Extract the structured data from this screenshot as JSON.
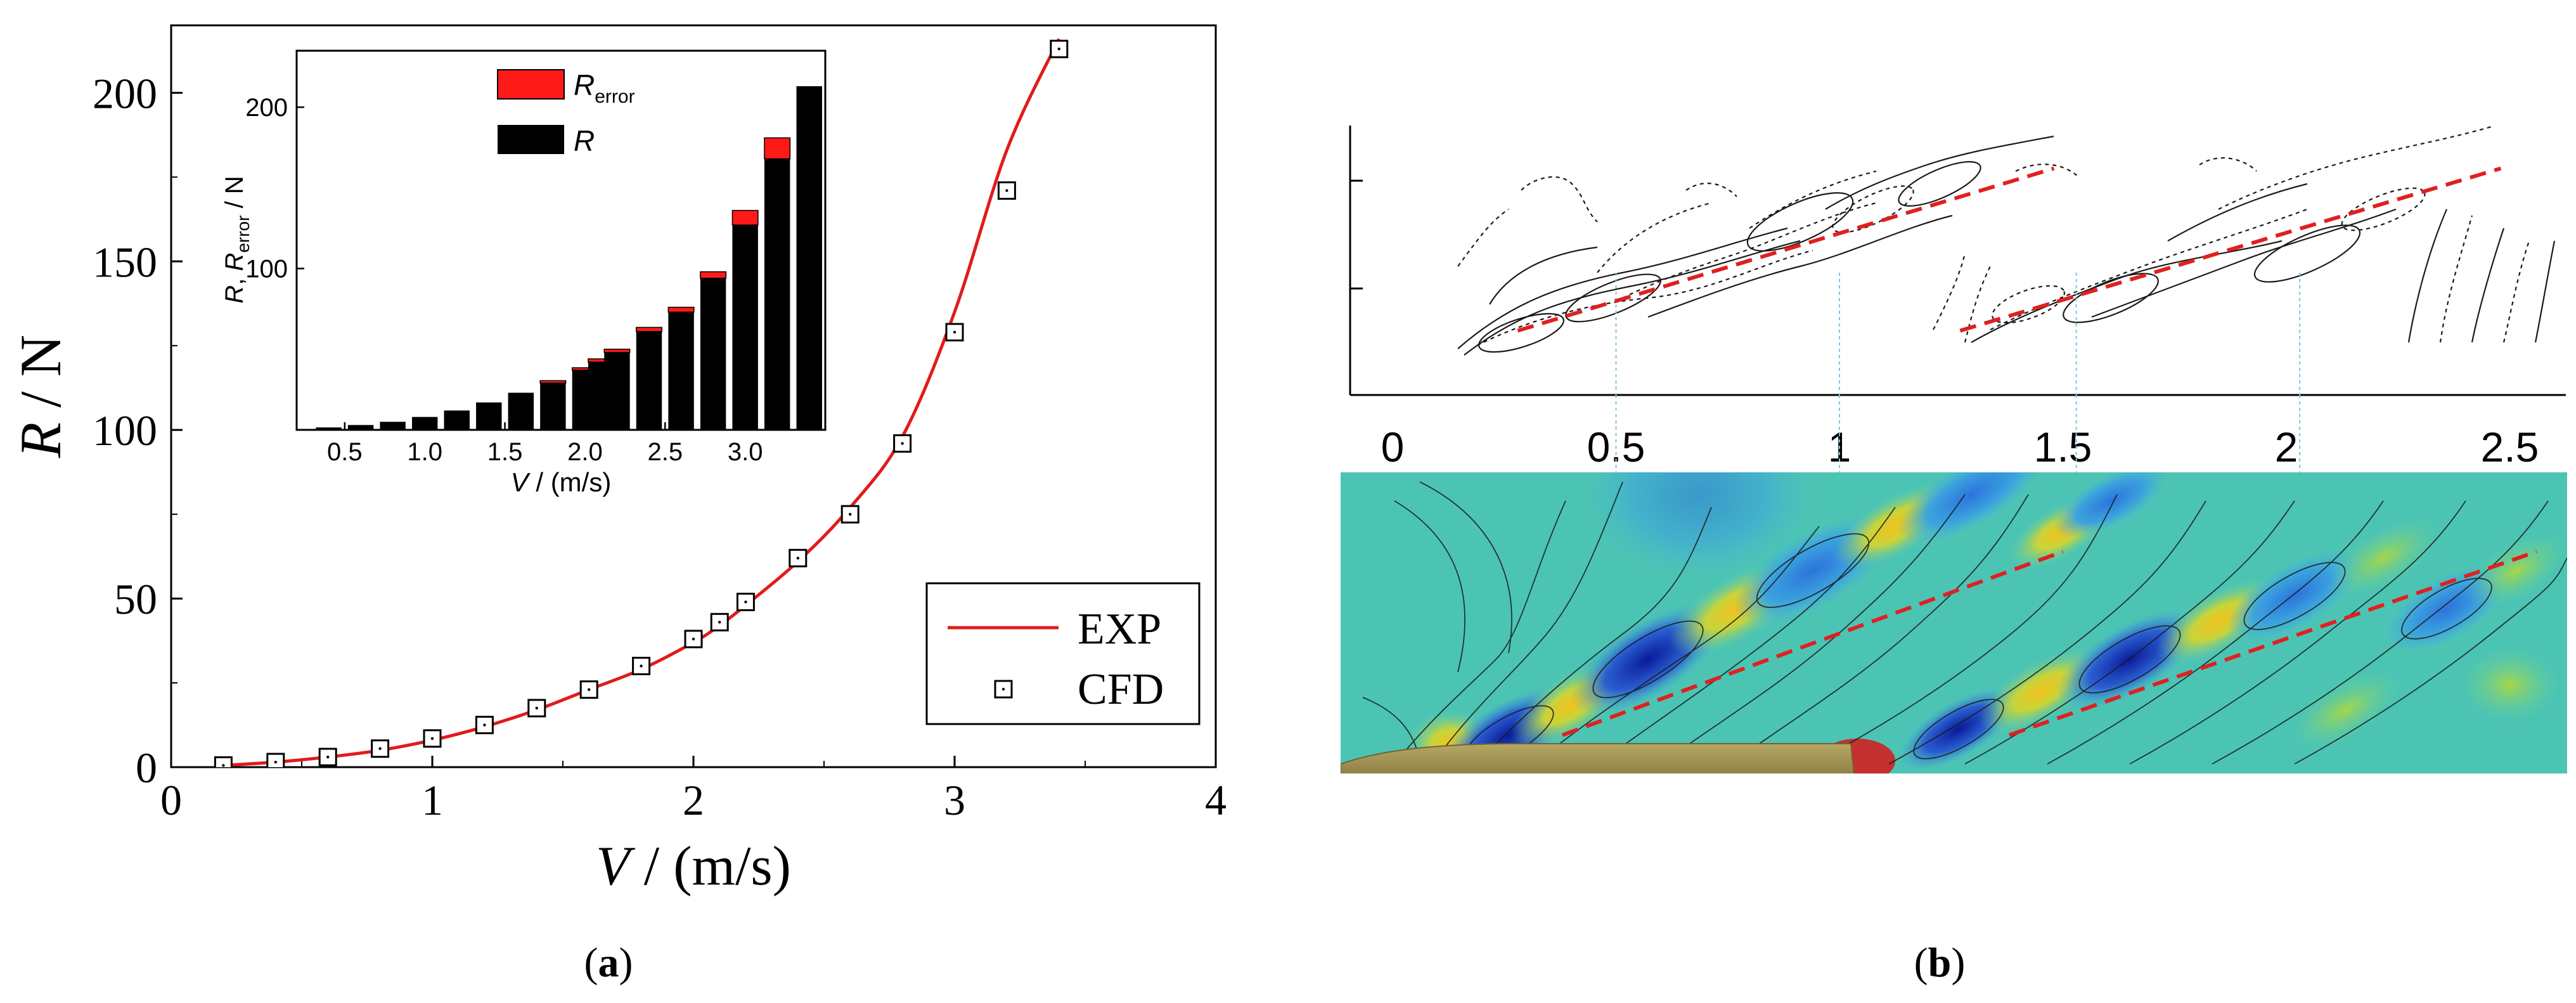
{
  "colors": {
    "exp_line": "#e11b1b",
    "axis": "#000000",
    "bar_r": "#000000",
    "bar_error": "#ff1a1a",
    "dashed_trail": "#e02020",
    "guide": "#7fc6df",
    "contour": "#1a1a1a",
    "hull": "#9c8d52"
  },
  "chart_data": [
    {
      "id": "a_main",
      "type": "line",
      "panel_label": "a",
      "xlabel": "V / (m/s)",
      "ylabel": "R / N",
      "xlim": [
        0,
        4
      ],
      "ylim": [
        0,
        220
      ],
      "xticks": [
        0,
        1,
        2,
        3,
        4
      ],
      "yticks": [
        0,
        50,
        100,
        150,
        200
      ],
      "legend": {
        "placement": "bottom-right",
        "entries": [
          "EXP",
          "CFD"
        ]
      },
      "series": [
        {
          "name": "EXP",
          "style": "line",
          "x": [
            0.2,
            0.4,
            0.6,
            0.8,
            1.0,
            1.2,
            1.4,
            1.6,
            1.8,
            2.0,
            2.1,
            2.2,
            2.4,
            2.6,
            2.8,
            3.0,
            3.2,
            3.4
          ],
          "y": [
            0.5,
            1.5,
            3,
            5,
            8,
            12,
            17,
            23,
            29,
            37,
            42,
            48,
            61,
            77,
            98,
            135,
            183,
            216
          ]
        },
        {
          "name": "CFD",
          "style": "open-square",
          "x": [
            0.2,
            0.4,
            0.6,
            0.8,
            1.0,
            1.2,
            1.4,
            1.6,
            1.8,
            2.0,
            2.1,
            2.2,
            2.4,
            2.6,
            2.8,
            3.0,
            3.2,
            3.4
          ],
          "y": [
            0.5,
            1.5,
            3,
            5.5,
            8.5,
            12.5,
            17.5,
            23,
            30,
            38,
            43,
            49,
            62,
            75,
            96,
            129,
            171,
            213
          ]
        }
      ]
    },
    {
      "id": "a_inset",
      "type": "bar",
      "stacked": true,
      "xlabel": "V / (m/s)",
      "ylabel": "R, R_error / N",
      "ylabel_parts": [
        "R, ",
        "R",
        "error",
        " / N"
      ],
      "xlim": [
        0.2,
        3.5
      ],
      "ylim": [
        0,
        235
      ],
      "xticks": [
        "0.5",
        "1.0",
        "1.5",
        "2.0",
        "2.5",
        "3.0"
      ],
      "yticks": [
        "100",
        "200"
      ],
      "legend": {
        "placement": "top-center",
        "entries": [
          "R_error",
          "R"
        ]
      },
      "legend_parts": [
        [
          "R",
          "error"
        ],
        [
          "R",
          ""
        ]
      ],
      "x": [
        0.4,
        0.6,
        0.8,
        1.0,
        1.2,
        1.4,
        1.6,
        1.8,
        2.0,
        2.1,
        2.2,
        2.4,
        2.6,
        2.8,
        3.0,
        3.2,
        3.4
      ],
      "series": [
        {
          "name": "R",
          "values": [
            1.5,
            3,
            5,
            8,
            12,
            17,
            23,
            29,
            37,
            42,
            48,
            61,
            73,
            94,
            127,
            168,
            213
          ]
        },
        {
          "name": "R_error",
          "values": [
            0,
            0,
            0,
            0,
            0,
            0,
            0,
            1.5,
            1.5,
            2,
            2,
            2.5,
            3,
            4,
            9,
            13,
            0
          ]
        }
      ]
    },
    {
      "id": "b_contours",
      "type": "other",
      "panel_label": "b",
      "description_free": true,
      "xticks": [
        "0",
        "0.5",
        "1",
        "1.5",
        "2",
        "2.5"
      ],
      "xtick_values": [
        0,
        0.5,
        1,
        1.5,
        2,
        2.5
      ],
      "guide_x": [
        0.5,
        1.0,
        1.53,
        2.03
      ],
      "top_wake_trails": [
        {
          "x0": 0.28,
          "y0": 0.12,
          "x1": 1.48,
          "y1": 0.92
        },
        {
          "x0": 1.27,
          "y0": 0.12,
          "x1": 2.48,
          "y1": 0.92
        }
      ],
      "bottom_wake_trails": [
        {
          "x0": 0.38,
          "y0": 0.06,
          "x1": 1.5,
          "y1": 0.74
        },
        {
          "x0": 1.38,
          "y0": 0.06,
          "x1": 2.56,
          "y1": 0.74
        }
      ]
    }
  ]
}
